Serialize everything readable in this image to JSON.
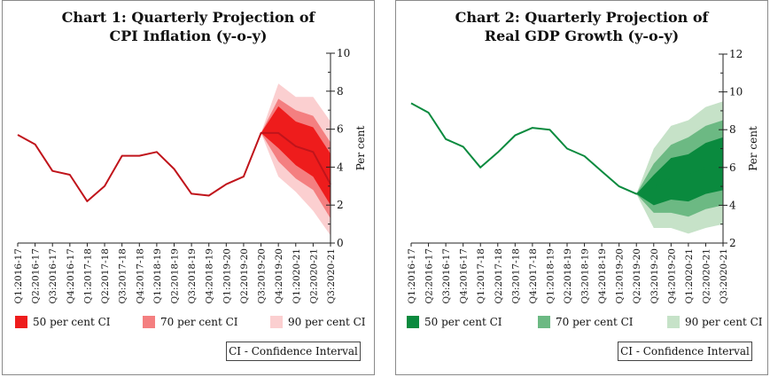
{
  "chart_data": [
    {
      "type": "line",
      "title_lines": [
        "Chart 1: Quarterly Projection of",
        "CPI Inflation (y-o-y)"
      ],
      "ylabel": "Per cent",
      "ylim": [
        0,
        10
      ],
      "yticks": [
        0,
        2,
        4,
        6,
        8,
        10
      ],
      "categories": [
        "Q1:2016-17",
        "Q2:2016-17",
        "Q3:2016-17",
        "Q4:2016-17",
        "Q1:2017-18",
        "Q2:2017-18",
        "Q3:2017-18",
        "Q4:2017-18",
        "Q1:2018-19",
        "Q2:2018-19",
        "Q3:2018-19",
        "Q4:2018-19",
        "Q1:2019-20",
        "Q2:2019-20",
        "Q3:2019-20",
        "Q4:2019-20",
        "Q1:2020-21",
        "Q2:2020-21",
        "Q3:2020-21"
      ],
      "series": [
        {
          "values": [
            5.7,
            5.2,
            3.8,
            3.6,
            2.2,
            3.0,
            4.6,
            4.6,
            4.8,
            3.9,
            2.6,
            2.5,
            3.1,
            3.5,
            5.8,
            5.8,
            5.1,
            4.8,
            3.1
          ]
        }
      ],
      "fan": {
        "start_index": 14,
        "ci90": {
          "upper": [
            5.8,
            8.4,
            7.7,
            7.7,
            6.4
          ],
          "lower": [
            5.8,
            3.5,
            2.7,
            1.7,
            0.4
          ]
        },
        "ci70": {
          "upper": [
            5.8,
            7.6,
            7.0,
            6.7,
            5.3
          ],
          "lower": [
            5.8,
            4.3,
            3.4,
            2.8,
            1.3
          ]
        },
        "ci50": {
          "upper": [
            5.8,
            7.2,
            6.4,
            6.1,
            4.7
          ],
          "lower": [
            5.8,
            5.0,
            4.1,
            3.5,
            2.0
          ]
        }
      },
      "colors": {
        "line": "#c0141b",
        "ci50": "#ee1c1c",
        "ci70": "#f47f80",
        "ci90": "#fbcfd0"
      },
      "legend": [
        "50 per cent CI",
        "70 per cent CI",
        "90 per cent CI"
      ],
      "legend_position": "bottom",
      "note": "CI - Confidence Interval"
    },
    {
      "type": "line",
      "title_lines": [
        "Chart 2: Quarterly Projection of",
        "Real GDP Growth (y-o-y)"
      ],
      "ylabel": "Per cent",
      "ylim": [
        2,
        12
      ],
      "yticks": [
        2,
        4,
        6,
        8,
        10,
        12
      ],
      "categories": [
        "Q1:2016-17",
        "Q2:2016-17",
        "Q3:2016-17",
        "Q4:2016-17",
        "Q1:2017-18",
        "Q2:2017-18",
        "Q3:2017-18",
        "Q4:2017-18",
        "Q1:2018-19",
        "Q2:2018-19",
        "Q3:2018-19",
        "Q4:2018-19",
        "Q1:2019-20",
        "Q2:2019-20",
        "Q3:2019-20",
        "Q4:2019-20",
        "Q1:2020-21",
        "Q2:2020-21",
        "Q3:2020-21"
      ],
      "series": [
        {
          "values": [
            9.4,
            8.9,
            7.5,
            7.1,
            6.0,
            6.8,
            7.7,
            8.1,
            8.0,
            7.0,
            6.6,
            5.8,
            5.0,
            4.6,
            4.9,
            5.5,
            5.7,
            6.0,
            6.3
          ]
        }
      ],
      "fan": {
        "start_index": 13,
        "ci90": {
          "upper": [
            4.6,
            7.0,
            8.2,
            8.5,
            9.2,
            9.5
          ],
          "lower": [
            4.6,
            2.8,
            2.8,
            2.5,
            2.8,
            3.0
          ]
        },
        "ci70": {
          "upper": [
            4.6,
            6.2,
            7.2,
            7.6,
            8.2,
            8.5
          ],
          "lower": [
            4.6,
            3.6,
            3.6,
            3.4,
            3.8,
            4.0
          ]
        },
        "ci50": {
          "upper": [
            4.6,
            5.6,
            6.5,
            6.7,
            7.3,
            7.6
          ],
          "lower": [
            4.6,
            4.0,
            4.3,
            4.2,
            4.6,
            4.8
          ]
        }
      },
      "colors": {
        "line": "#0a8a3e",
        "ci50": "#0a8a3e",
        "ci70": "#6cb983",
        "ci90": "#c6e2c8"
      },
      "legend": [
        "50 per cent CI",
        "70 per cent CI",
        "90 per cent CI"
      ],
      "legend_position": "bottom",
      "note": "CI - Confidence Interval"
    }
  ]
}
